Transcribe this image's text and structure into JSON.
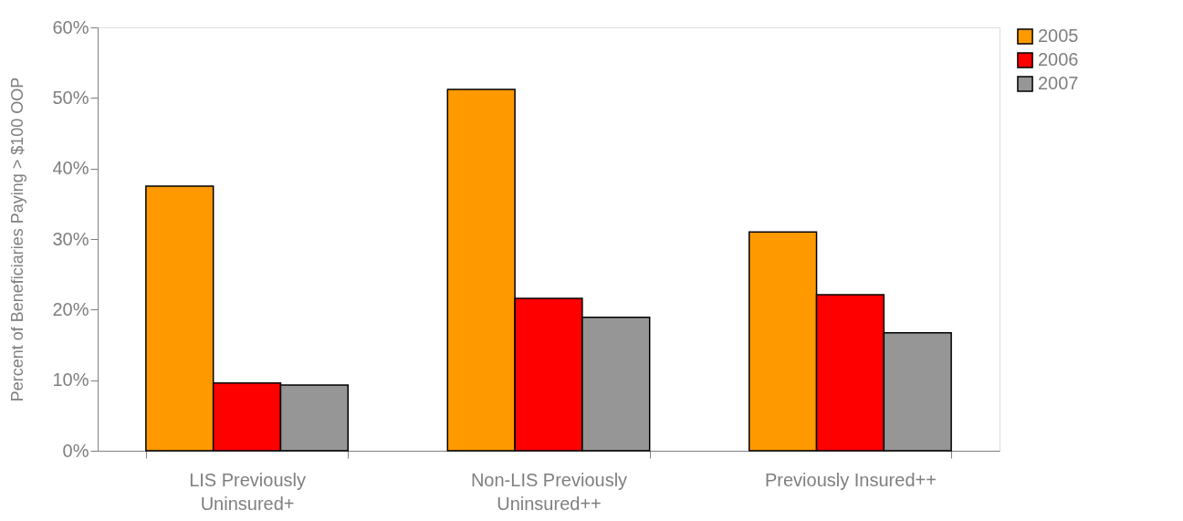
{
  "chart_data": {
    "type": "bar",
    "ylabel": "Percent of Beneficiaries Paying > $100 OOP",
    "categories": [
      "LIS Previously Uninsured+",
      "Non-LIS Previously Uninsured++",
      "Previously Insured++"
    ],
    "series": [
      {
        "name": "2005",
        "color": "#ff9900",
        "values": [
          37.5,
          51.2,
          31.0
        ]
      },
      {
        "name": "2006",
        "color": "#ff0000",
        "values": [
          9.6,
          21.6,
          22.1
        ]
      },
      {
        "name": "2007",
        "color": "#969696",
        "values": [
          9.3,
          18.9,
          16.7
        ]
      }
    ],
    "ylim": [
      0,
      60
    ],
    "yticks": [
      {
        "value": 0,
        "label": "0%"
      },
      {
        "value": 10,
        "label": "10%"
      },
      {
        "value": 20,
        "label": "20%"
      },
      {
        "value": 30,
        "label": "30%"
      },
      {
        "value": 40,
        "label": "40%"
      },
      {
        "value": 50,
        "label": "50%"
      },
      {
        "value": 60,
        "label": "60%"
      }
    ],
    "grid": false,
    "legend": "right"
  }
}
